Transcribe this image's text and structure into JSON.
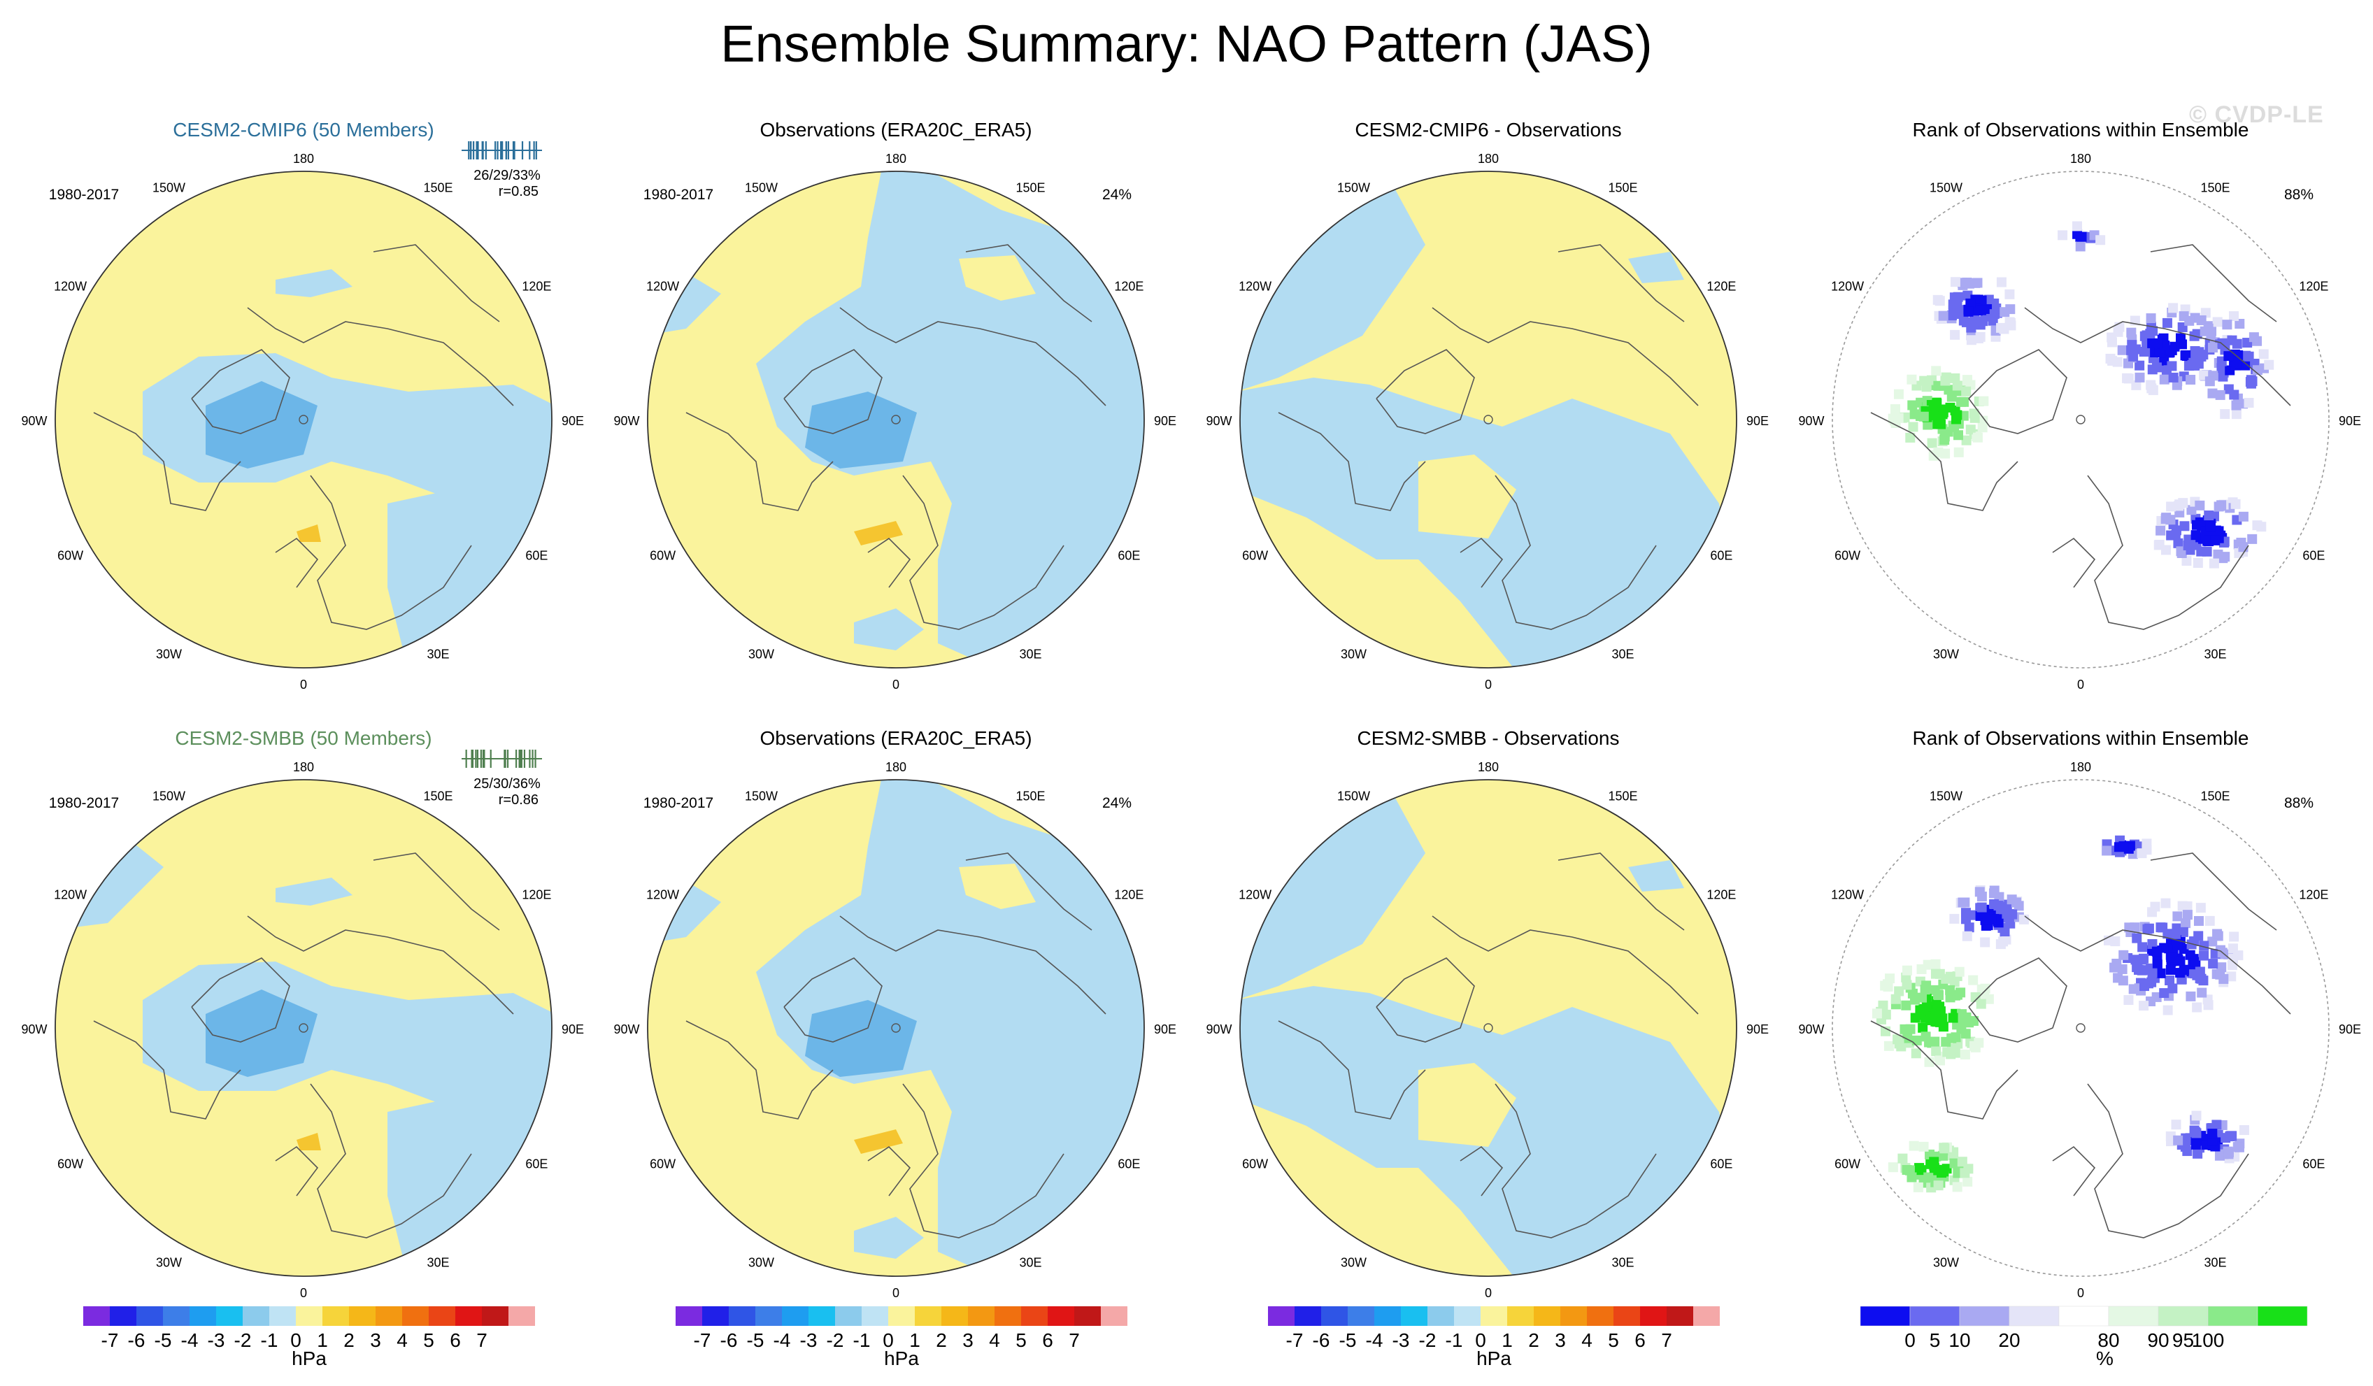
{
  "title": "Ensemble Summary: NAO Pattern (JAS)",
  "watermark": "© CVDP-LE",
  "rows": [
    {
      "model_label": "CESM2-CMIP6 (50 Members)",
      "model_color": "#2b6f9a",
      "bar_color": "#2b6f9a",
      "period": "1980-2017",
      "stats": "26/29/33%",
      "correlation": "r=0.85",
      "obs_title": "Observations (ERA20C_ERA5)",
      "obs_period": "1980-2017",
      "obs_pct": "24%",
      "diff_title": "CESM2-CMIP6 - Observations",
      "rank_title": "Rank of Observations within Ensemble",
      "rank_pct": "88%"
    },
    {
      "model_label": "CESM2-SMBB (50 Members)",
      "model_color": "#5c8f5c",
      "bar_color": "#4f7f4f",
      "period": "1980-2017",
      "stats": "25/30/36%",
      "correlation": "r=0.86",
      "obs_title": "Observations (ERA20C_ERA5)",
      "obs_period": "1980-2017",
      "obs_pct": "24%",
      "diff_title": "CESM2-SMBB - Observations",
      "rank_title": "Rank of Observations within Ensemble",
      "rank_pct": "88%"
    }
  ],
  "longitude_labels": [
    "180",
    "150E",
    "120E",
    "90E",
    "60E",
    "30E",
    "0",
    "30W",
    "60W",
    "90W",
    "120W",
    "150W"
  ],
  "colors": {
    "positive_fill": "#faf39c",
    "negative_fill": "#b2dcf2",
    "negative_strong": "#6cb6e8",
    "negative_core": "#4a9ad8",
    "positive_strong": "#f5c530"
  },
  "hpa_colorbar": {
    "colors": [
      "#7b2be0",
      "#2020e8",
      "#2f55e6",
      "#3d7ee8",
      "#1e9df0",
      "#19bff0",
      "#8ccbec",
      "#bfe3f4",
      "#faf39c",
      "#f6d43a",
      "#f5b718",
      "#f39812",
      "#f07010",
      "#ea4516",
      "#e01515",
      "#c01818",
      "#f4a8a8"
    ],
    "labels": [
      "-7",
      "-6",
      "-5",
      "-4",
      "-3",
      "-2",
      "-1",
      "0",
      "1",
      "2",
      "3",
      "4",
      "5",
      "6",
      "7"
    ],
    "unit": "hPa"
  },
  "rank_colorbar": {
    "colors": [
      "#0d0df0",
      "#6a6af0",
      "#a9a9f2",
      "#e4e4f8",
      "#ffffff",
      "#e4f8e4",
      "#c4f2c4",
      "#8aea8a",
      "#18e018"
    ],
    "labels": [
      "0",
      "5",
      "10",
      "20",
      "80",
      "90",
      "95",
      "100"
    ],
    "unit": "%"
  }
}
